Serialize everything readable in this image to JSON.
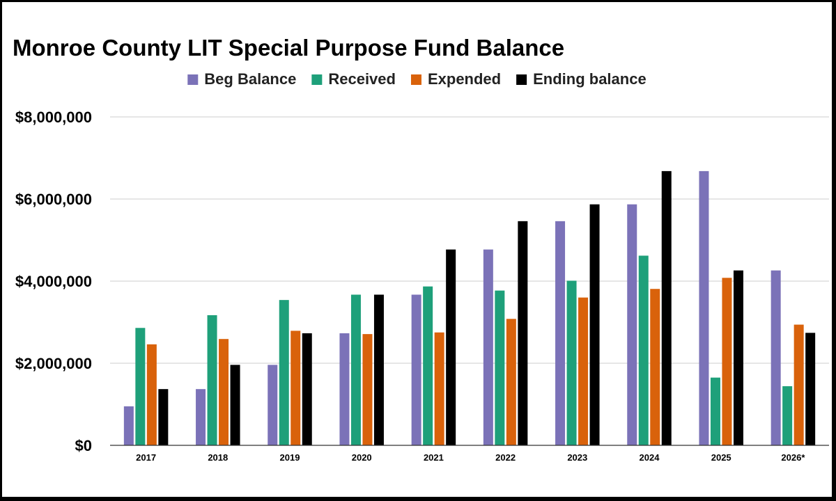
{
  "chart_data": {
    "type": "bar",
    "title": "Monroe County LIT Special Purpose Fund Balance",
    "categories": [
      "2017",
      "2018",
      "2019",
      "2020",
      "2021",
      "2022",
      "2023",
      "2024",
      "2025",
      "2026*"
    ],
    "series": [
      {
        "name": "Beg Balance",
        "color": "#7b72b8",
        "values": [
          950000,
          1370000,
          1960000,
          2730000,
          3670000,
          4770000,
          5460000,
          5870000,
          6680000,
          4260000
        ]
      },
      {
        "name": "Received",
        "color": "#1ea07a",
        "values": [
          2860000,
          3170000,
          3540000,
          3670000,
          3870000,
          3770000,
          4010000,
          4620000,
          1650000,
          1440000
        ]
      },
      {
        "name": "Expended",
        "color": "#d9620b",
        "values": [
          2460000,
          2590000,
          2790000,
          2710000,
          2750000,
          3080000,
          3600000,
          3810000,
          4080000,
          2940000
        ]
      },
      {
        "name": "Ending balance",
        "color": "#000000",
        "values": [
          1370000,
          1960000,
          2730000,
          3670000,
          4770000,
          5460000,
          5870000,
          6680000,
          4260000,
          2740000
        ]
      }
    ],
    "ylim": [
      0,
      8000000
    ],
    "yticks": [
      {
        "value": 0,
        "label": "$0"
      },
      {
        "value": 2000000,
        "label": "$2,000,000"
      },
      {
        "value": 4000000,
        "label": "$4,000,000"
      },
      {
        "value": 6000000,
        "label": "$6,000,000"
      },
      {
        "value": 8000000,
        "label": "$8,000,000"
      }
    ],
    "xlabel": "",
    "ylabel": "",
    "grid": true,
    "legend_position": "top-center"
  }
}
